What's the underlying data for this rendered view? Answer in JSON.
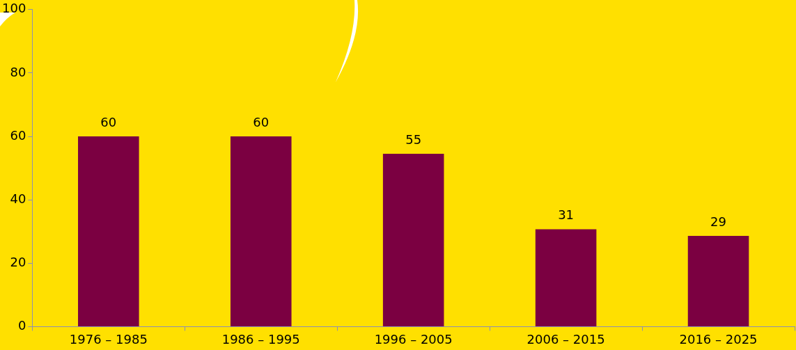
{
  "chart_data": {
    "type": "bar",
    "categories": [
      "1976 – 1985",
      "1986 – 1995",
      "1996 – 2005",
      "2006 – 2015",
      "2016 – 2025"
    ],
    "values": [
      60,
      60,
      54.5,
      30.7,
      28.6
    ],
    "value_labels": [
      "60",
      "60",
      "55",
      "31",
      "29"
    ],
    "color": "#7b0041",
    "ylim": [
      0,
      100
    ],
    "yticks": [
      0,
      20,
      40,
      60,
      80,
      100
    ],
    "grid": false,
    "legend": false
  }
}
